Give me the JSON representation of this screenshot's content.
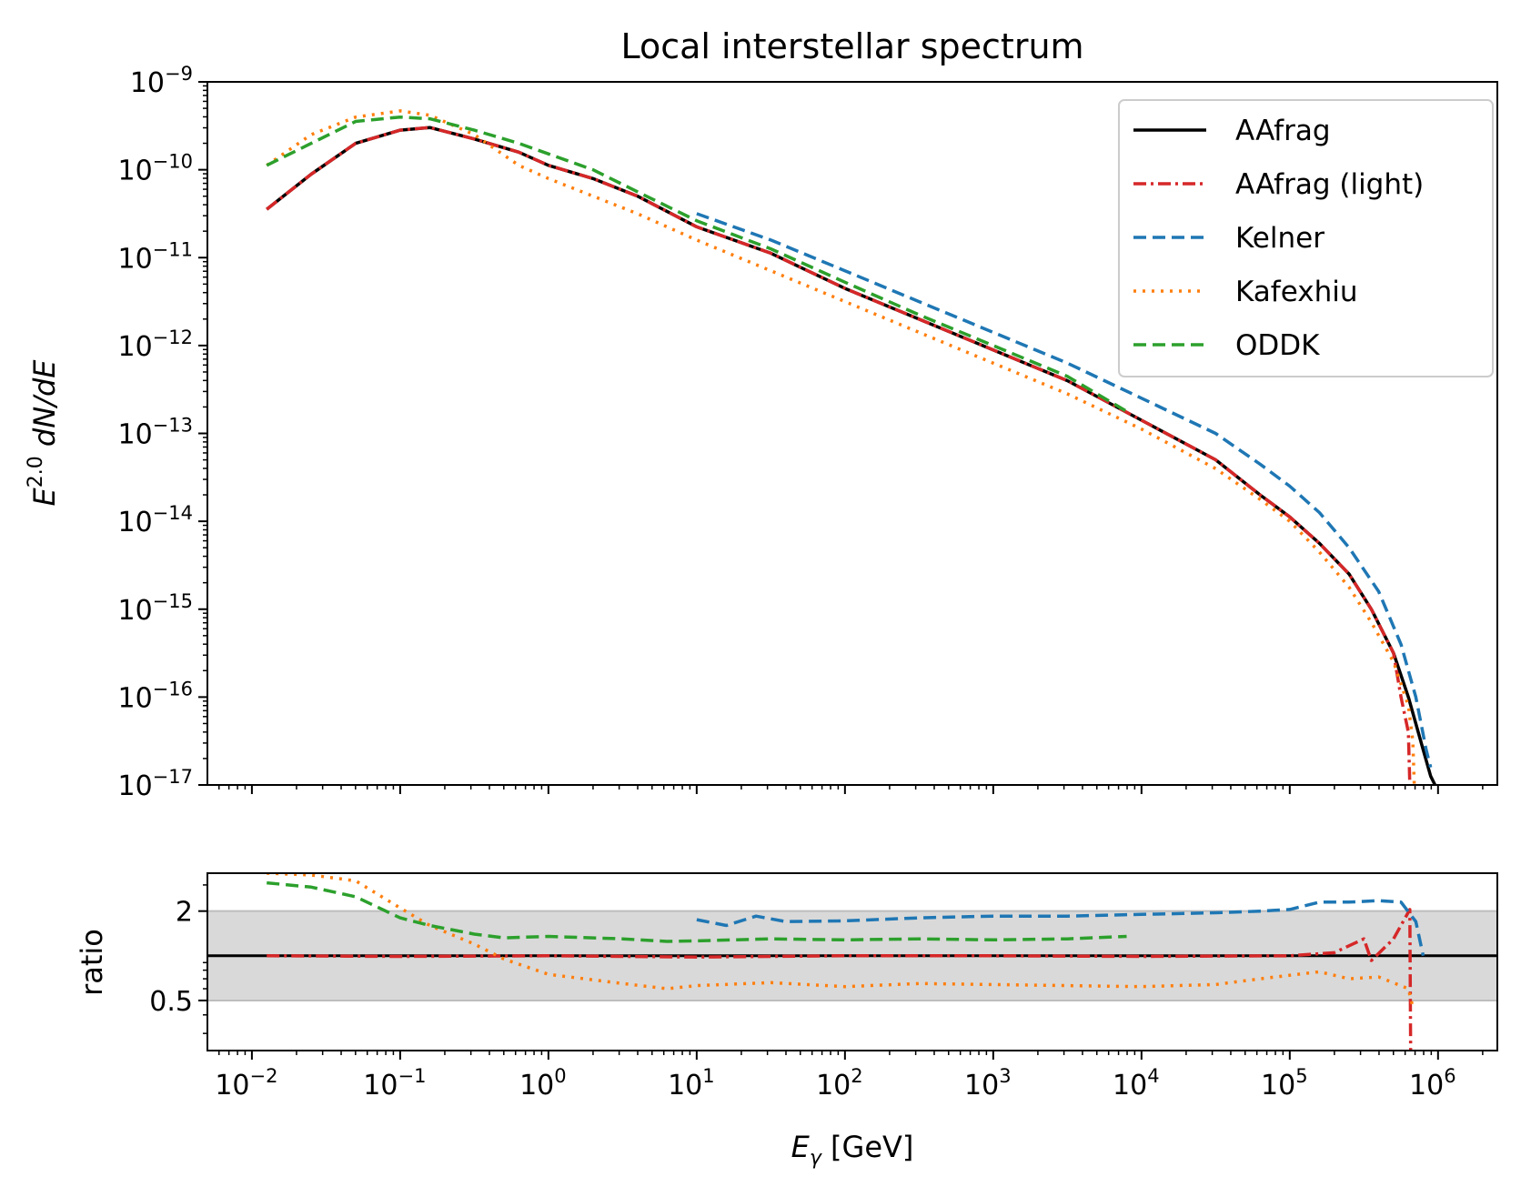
{
  "chart_data": {
    "type": "line",
    "title": "Local interstellar spectrum",
    "xlabel": "E_γ [GeV]",
    "xlabel_parts": {
      "symbol": "E",
      "subscript": "γ",
      "unit": " [GeV]"
    },
    "xscale": "log",
    "xlim_log10": [
      -2.3,
      6.4
    ],
    "x_ticks": [
      {
        "base": "10",
        "exp": "−2"
      },
      {
        "base": "10",
        "exp": "−1"
      },
      {
        "base": "10",
        "exp": "0"
      },
      {
        "base": "10",
        "exp": "1"
      },
      {
        "base": "10",
        "exp": "2"
      },
      {
        "base": "10",
        "exp": "3"
      },
      {
        "base": "10",
        "exp": "4"
      },
      {
        "base": "10",
        "exp": "5"
      },
      {
        "base": "10",
        "exp": "6"
      }
    ],
    "legend_position": "top-right",
    "top_panel": {
      "ylabel": "E^2.0 dN/dE",
      "ylabel_parts": {
        "base": "E",
        "sup": "2.0",
        "rest": " dN/dE"
      },
      "yscale": "log",
      "ylim_log10": [
        -17,
        -9
      ],
      "y_ticks": [
        {
          "base": "10",
          "exp": "−9"
        },
        {
          "base": "10",
          "exp": "−10"
        },
        {
          "base": "10",
          "exp": "−11"
        },
        {
          "base": "10",
          "exp": "−12"
        },
        {
          "base": "10",
          "exp": "−13"
        },
        {
          "base": "10",
          "exp": "−14"
        },
        {
          "base": "10",
          "exp": "−15"
        },
        {
          "base": "10",
          "exp": "−16"
        },
        {
          "base": "10",
          "exp": "−17"
        }
      ],
      "series": [
        {
          "name": "AAfrag",
          "color": "#000000",
          "style": "solid",
          "points": [
            [
              -1.9,
              -10.45
            ],
            [
              -1.6,
              -10.05
            ],
            [
              -1.3,
              -9.7
            ],
            [
              -1.0,
              -9.55
            ],
            [
              -0.8,
              -9.52
            ],
            [
              -0.5,
              -9.65
            ],
            [
              -0.2,
              -9.8
            ],
            [
              0.0,
              -9.95
            ],
            [
              0.3,
              -10.1
            ],
            [
              0.6,
              -10.3
            ],
            [
              1.0,
              -10.65
            ],
            [
              1.5,
              -10.95
            ],
            [
              2.0,
              -11.35
            ],
            [
              2.5,
              -11.7
            ],
            [
              3.0,
              -12.05
            ],
            [
              3.5,
              -12.4
            ],
            [
              4.0,
              -12.85
            ],
            [
              4.5,
              -13.3
            ],
            [
              4.8,
              -13.7
            ],
            [
              5.0,
              -13.95
            ],
            [
              5.2,
              -14.25
            ],
            [
              5.4,
              -14.6
            ],
            [
              5.55,
              -15.0
            ],
            [
              5.7,
              -15.5
            ],
            [
              5.8,
              -16.0
            ],
            [
              5.9,
              -16.6
            ],
            [
              5.95,
              -16.9
            ],
            [
              5.98,
              -17.0
            ]
          ]
        },
        {
          "name": "AAfrag (light)",
          "color": "#d62728",
          "style": "dashdot",
          "points": [
            [
              -1.9,
              -10.45
            ],
            [
              -1.6,
              -10.05
            ],
            [
              -1.3,
              -9.7
            ],
            [
              -1.0,
              -9.55
            ],
            [
              -0.8,
              -9.52
            ],
            [
              -0.5,
              -9.65
            ],
            [
              -0.2,
              -9.8
            ],
            [
              0.0,
              -9.95
            ],
            [
              0.3,
              -10.1
            ],
            [
              0.6,
              -10.3
            ],
            [
              1.0,
              -10.65
            ],
            [
              1.5,
              -10.95
            ],
            [
              2.0,
              -11.35
            ],
            [
              2.5,
              -11.7
            ],
            [
              3.0,
              -12.05
            ],
            [
              3.5,
              -12.4
            ],
            [
              4.0,
              -12.85
            ],
            [
              4.5,
              -13.3
            ],
            [
              4.8,
              -13.7
            ],
            [
              5.0,
              -13.95
            ],
            [
              5.2,
              -14.25
            ],
            [
              5.4,
              -14.6
            ],
            [
              5.55,
              -15.0
            ],
            [
              5.7,
              -15.5
            ],
            [
              5.75,
              -16.0
            ],
            [
              5.8,
              -16.4
            ],
            [
              5.81,
              -17.0
            ]
          ]
        },
        {
          "name": "Kelner",
          "color": "#1f77b4",
          "style": "dashed",
          "points": [
            [
              1.0,
              -10.5
            ],
            [
              1.5,
              -10.8
            ],
            [
              2.0,
              -11.15
            ],
            [
              2.5,
              -11.5
            ],
            [
              3.0,
              -11.85
            ],
            [
              3.5,
              -12.2
            ],
            [
              4.0,
              -12.6
            ],
            [
              4.5,
              -13.0
            ],
            [
              4.8,
              -13.35
            ],
            [
              5.0,
              -13.6
            ],
            [
              5.2,
              -13.9
            ],
            [
              5.4,
              -14.3
            ],
            [
              5.6,
              -14.8
            ],
            [
              5.75,
              -15.4
            ],
            [
              5.85,
              -16.0
            ],
            [
              5.92,
              -16.6
            ],
            [
              5.95,
              -16.8
            ]
          ]
        },
        {
          "name": "Kafexhiu",
          "color": "#ff7f0e",
          "style": "dotted",
          "points": [
            [
              -1.9,
              -9.95
            ],
            [
              -1.6,
              -9.6
            ],
            [
              -1.3,
              -9.4
            ],
            [
              -1.0,
              -9.33
            ],
            [
              -0.8,
              -9.38
            ],
            [
              -0.5,
              -9.6
            ],
            [
              -0.2,
              -9.95
            ],
            [
              0.0,
              -10.1
            ],
            [
              0.3,
              -10.3
            ],
            [
              0.6,
              -10.5
            ],
            [
              1.0,
              -10.8
            ],
            [
              1.5,
              -11.15
            ],
            [
              2.0,
              -11.5
            ],
            [
              2.5,
              -11.85
            ],
            [
              3.0,
              -12.2
            ],
            [
              3.5,
              -12.55
            ],
            [
              4.0,
              -12.95
            ],
            [
              4.5,
              -13.4
            ],
            [
              4.8,
              -13.75
            ],
            [
              5.0,
              -14.0
            ],
            [
              5.2,
              -14.35
            ],
            [
              5.4,
              -14.75
            ],
            [
              5.55,
              -15.15
            ],
            [
              5.7,
              -15.6
            ],
            [
              5.8,
              -16.1
            ],
            [
              5.83,
              -16.5
            ],
            [
              5.84,
              -17.0
            ]
          ]
        },
        {
          "name": "ODDK",
          "color": "#2ca02c",
          "style": "dashed",
          "points": [
            [
              -1.9,
              -9.95
            ],
            [
              -1.6,
              -9.7
            ],
            [
              -1.3,
              -9.45
            ],
            [
              -1.0,
              -9.4
            ],
            [
              -0.8,
              -9.42
            ],
            [
              -0.5,
              -9.55
            ],
            [
              -0.2,
              -9.7
            ],
            [
              0.0,
              -9.82
            ],
            [
              0.3,
              -10.0
            ],
            [
              0.6,
              -10.25
            ],
            [
              1.0,
              -10.58
            ],
            [
              1.5,
              -10.9
            ],
            [
              2.0,
              -11.28
            ],
            [
              2.5,
              -11.65
            ],
            [
              3.0,
              -12.0
            ],
            [
              3.5,
              -12.35
            ],
            [
              3.9,
              -12.75
            ]
          ]
        }
      ]
    },
    "bottom_panel": {
      "ylabel": "ratio",
      "yscale": "log",
      "ylim": [
        0.23,
        3.6
      ],
      "y_ticks": [
        {
          "value": 2,
          "label": "2"
        },
        {
          "value": 0.5,
          "label": "0.5"
        }
      ],
      "reference_line": 1.0,
      "shaded_band": [
        0.5,
        2.0
      ],
      "series": [
        {
          "name": "AAfrag",
          "color": "#000000",
          "style": "solid",
          "points": [
            [
              -2.3,
              1.0
            ],
            [
              6.4,
              1.0
            ]
          ]
        },
        {
          "name": "AAfrag (light)",
          "color": "#d62728",
          "style": "dashdot",
          "points": [
            [
              -1.9,
              1.0
            ],
            [
              -1.0,
              0.99
            ],
            [
              0.0,
              1.0
            ],
            [
              1.0,
              0.98
            ],
            [
              2.0,
              1.0
            ],
            [
              3.0,
              1.0
            ],
            [
              4.0,
              0.99
            ],
            [
              5.0,
              1.0
            ],
            [
              5.3,
              1.05
            ],
            [
              5.5,
              1.3
            ],
            [
              5.55,
              0.93
            ],
            [
              5.7,
              1.3
            ],
            [
              5.81,
              2.05
            ],
            [
              5.815,
              0.23
            ]
          ]
        },
        {
          "name": "Kelner",
          "color": "#1f77b4",
          "style": "dashed",
          "points": [
            [
              1.0,
              1.75
            ],
            [
              1.2,
              1.6
            ],
            [
              1.4,
              1.85
            ],
            [
              1.6,
              1.7
            ],
            [
              2.0,
              1.72
            ],
            [
              2.5,
              1.8
            ],
            [
              3.0,
              1.85
            ],
            [
              3.5,
              1.85
            ],
            [
              4.0,
              1.9
            ],
            [
              4.5,
              1.95
            ],
            [
              4.8,
              2.0
            ],
            [
              5.0,
              2.05
            ],
            [
              5.2,
              2.3
            ],
            [
              5.4,
              2.3
            ],
            [
              5.6,
              2.35
            ],
            [
              5.75,
              2.3
            ],
            [
              5.85,
              1.7
            ],
            [
              5.9,
              1.0
            ]
          ]
        },
        {
          "name": "Kafexhiu",
          "color": "#ff7f0e",
          "style": "dotted",
          "points": [
            [
              -1.9,
              3.6
            ],
            [
              -1.6,
              3.5
            ],
            [
              -1.3,
              3.2
            ],
            [
              -1.0,
              2.1
            ],
            [
              -0.8,
              1.6
            ],
            [
              -0.5,
              1.2
            ],
            [
              -0.3,
              0.95
            ],
            [
              0.0,
              0.75
            ],
            [
              0.5,
              0.65
            ],
            [
              0.8,
              0.6
            ],
            [
              1.0,
              0.63
            ],
            [
              1.5,
              0.66
            ],
            [
              2.0,
              0.62
            ],
            [
              2.5,
              0.65
            ],
            [
              3.0,
              0.64
            ],
            [
              3.5,
              0.63
            ],
            [
              4.0,
              0.62
            ],
            [
              4.5,
              0.64
            ],
            [
              4.8,
              0.7
            ],
            [
              5.0,
              0.74
            ],
            [
              5.2,
              0.78
            ],
            [
              5.4,
              0.7
            ],
            [
              5.6,
              0.72
            ],
            [
              5.8,
              0.6
            ],
            [
              5.83,
              0.45
            ]
          ]
        },
        {
          "name": "ODDK",
          "color": "#2ca02c",
          "style": "dashed",
          "points": [
            [
              -1.9,
              3.1
            ],
            [
              -1.6,
              2.9
            ],
            [
              -1.3,
              2.5
            ],
            [
              -1.0,
              1.8
            ],
            [
              -0.8,
              1.6
            ],
            [
              -0.5,
              1.4
            ],
            [
              -0.3,
              1.32
            ],
            [
              0.0,
              1.35
            ],
            [
              0.5,
              1.3
            ],
            [
              0.8,
              1.25
            ],
            [
              1.0,
              1.26
            ],
            [
              1.5,
              1.3
            ],
            [
              2.0,
              1.28
            ],
            [
              2.5,
              1.3
            ],
            [
              3.0,
              1.28
            ],
            [
              3.5,
              1.3
            ],
            [
              3.9,
              1.35
            ]
          ]
        }
      ]
    }
  }
}
